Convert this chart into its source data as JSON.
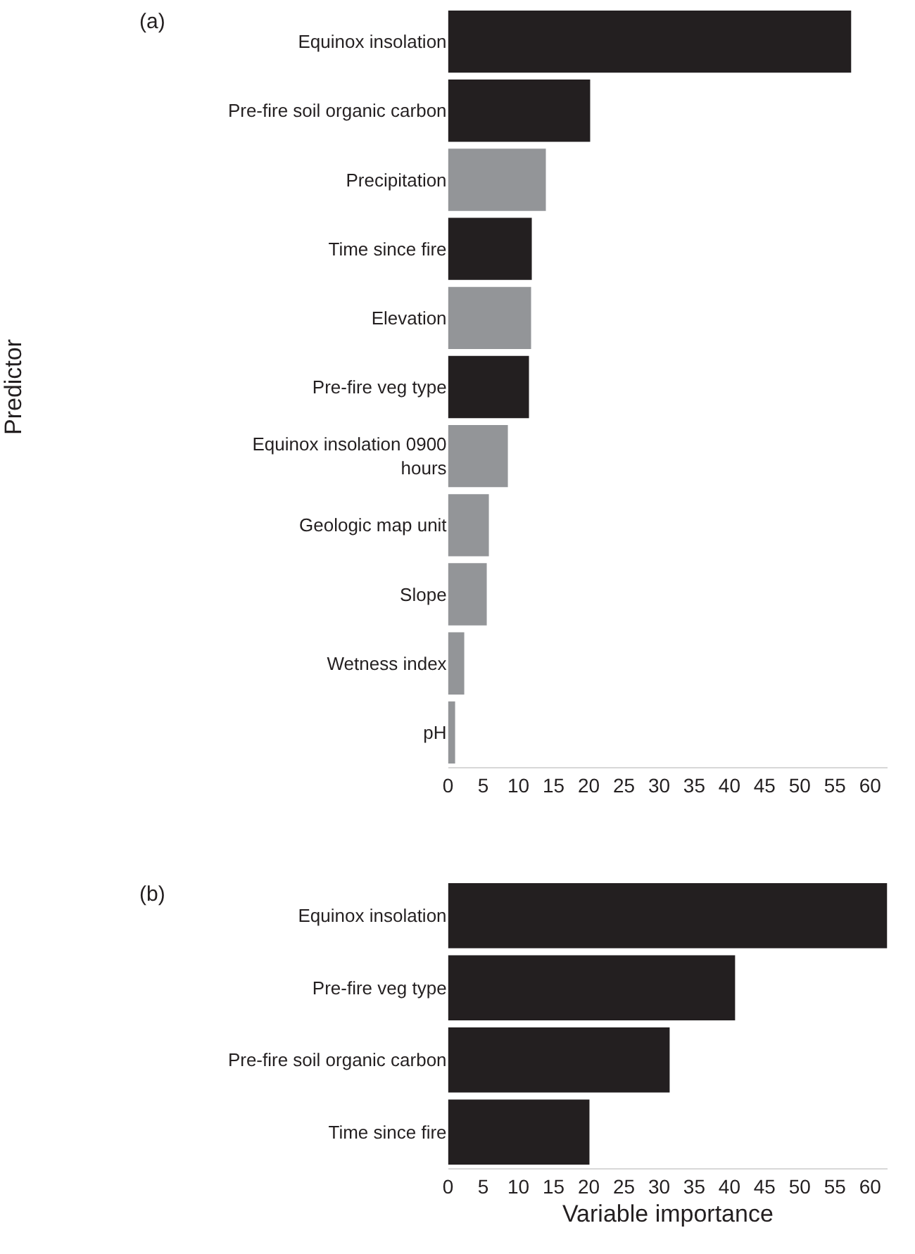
{
  "chart_data": [
    {
      "type": "bar",
      "orientation": "horizontal",
      "ylabel": "Predictor",
      "annotations": [
        "(a)"
      ],
      "categories": [
        "Equinox insolation",
        "Pre-fire soil organic carbon",
        "Precipitation",
        "Time since fire",
        "Elevation",
        "Pre-fire veg type",
        "Equinox insolation 0900 hours",
        "Geologic map unit",
        "Slope",
        "Wetness index",
        "pH"
      ],
      "values": [
        57.3,
        20.2,
        13.9,
        11.9,
        11.8,
        11.5,
        8.5,
        5.8,
        5.5,
        2.3,
        1.0
      ],
      "colors": [
        "#231f20",
        "#231f20",
        "#939598",
        "#231f20",
        "#939598",
        "#231f20",
        "#939598",
        "#939598",
        "#939598",
        "#939598",
        "#939598"
      ],
      "xlim": [
        0,
        62.5
      ],
      "xticks": [
        0,
        5,
        10,
        15,
        20,
        25,
        30,
        35,
        40,
        45,
        50,
        55,
        60
      ]
    },
    {
      "type": "bar",
      "orientation": "horizontal",
      "xlabel": "Variable importance",
      "annotations": [
        "(b)"
      ],
      "categories": [
        "Equinox insolation",
        "Pre-fire veg type",
        "Pre-fire soil organic carbon",
        "Time since fire"
      ],
      "values": [
        62.4,
        40.8,
        31.5,
        20.1
      ],
      "colors": [
        "#231f20",
        "#231f20",
        "#231f20",
        "#231f20"
      ],
      "xlim": [
        0,
        62.5
      ],
      "xticks": [
        0,
        5,
        10,
        15,
        20,
        25,
        30,
        35,
        40,
        45,
        50,
        55,
        60
      ]
    }
  ]
}
